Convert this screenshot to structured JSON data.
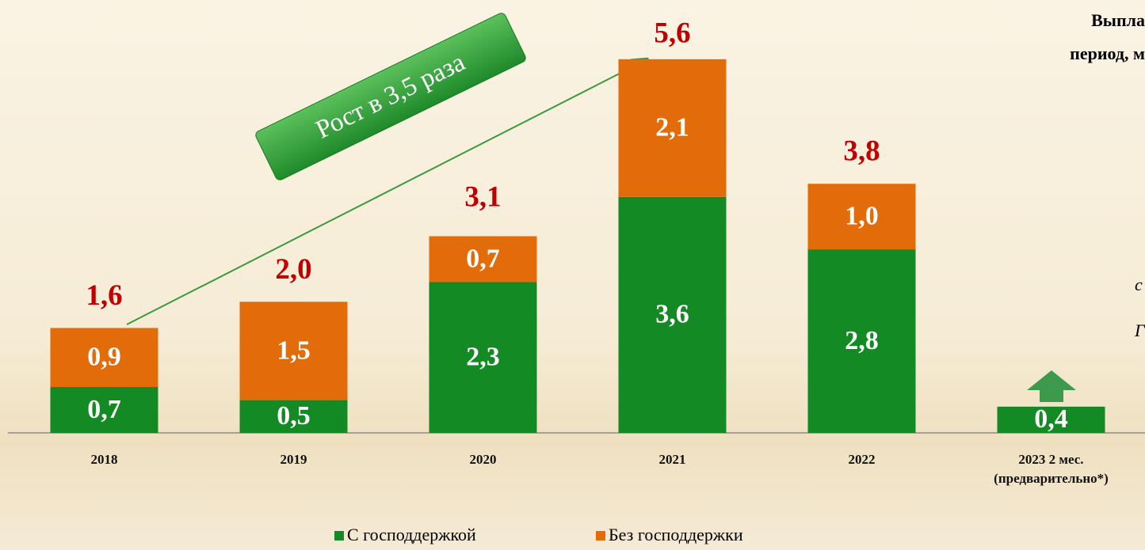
{
  "chart_data": {
    "type": "stacked_bar",
    "title": "Выпла",
    "subtitle": "период, м",
    "side_notes": [
      "с",
      "Г"
    ],
    "annotation": "Рост в 3,5 раза",
    "categories": [
      "2018",
      "2019",
      "2020",
      "2021",
      "2022",
      "2023 2 мес. (предварительно*)"
    ],
    "series": [
      {
        "name": "С господдержкой",
        "color": "#138a23",
        "values": [
          0.7,
          0.5,
          2.3,
          3.6,
          2.8,
          0.4
        ],
        "value_labels": [
          "0,7",
          "0,5",
          "2,3",
          "3,6",
          "2,8",
          "0,4"
        ]
      },
      {
        "name": "Без господдержки",
        "color": "#e36c0a",
        "values": [
          0.9,
          1.5,
          0.7,
          2.1,
          1.0,
          null
        ],
        "value_labels": [
          "0,9",
          "1,5",
          "0,7",
          "2,1",
          "1,0",
          null
        ]
      }
    ],
    "totals": [
      1.6,
      2.0,
      3.1,
      5.6,
      3.8,
      null
    ],
    "totals_labels": [
      "1,6",
      "2,0",
      "3,1",
      "5,6",
      "3,8",
      null
    ],
    "ylim": [
      0,
      6
    ]
  }
}
